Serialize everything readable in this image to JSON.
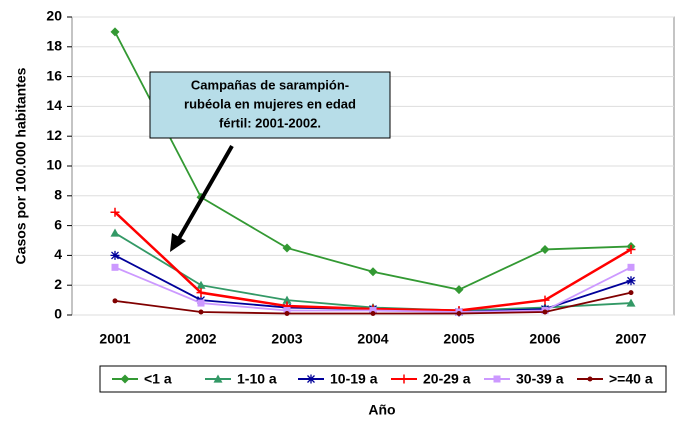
{
  "chart_data": {
    "type": "line",
    "x_label": "Año",
    "y_label": "Casos por 100.000 habitantes",
    "categories": [
      "2001",
      "2002",
      "2003",
      "2004",
      "2005",
      "2006",
      "2007"
    ],
    "series": [
      {
        "name": "<1 a",
        "color": "#339933",
        "marker": "diamond",
        "values": [
          19,
          7.9,
          4.5,
          2.9,
          1.7,
          4.4,
          4.6
        ]
      },
      {
        "name": "1-10 a",
        "color": "#339966",
        "marker": "triangle",
        "values": [
          5.5,
          2.0,
          1.0,
          0.5,
          0.3,
          0.5,
          0.8
        ]
      },
      {
        "name": "10-19 a",
        "color": "#000099",
        "marker": "asterisk",
        "values": [
          4.0,
          1.0,
          0.5,
          0.4,
          0.2,
          0.4,
          2.3
        ]
      },
      {
        "name": "20-29 a",
        "color": "#ff0000",
        "marker": "plus",
        "values": [
          6.9,
          1.5,
          0.6,
          0.4,
          0.3,
          1.0,
          4.4
        ]
      },
      {
        "name": "30-39 a",
        "color": "#cc99ff",
        "marker": "square",
        "values": [
          3.2,
          0.8,
          0.3,
          0.3,
          0.2,
          0.3,
          3.2
        ]
      },
      {
        "name": ">=40 a",
        "color": "#800000",
        "marker": "circle",
        "values": [
          0.95,
          0.2,
          0.1,
          0.1,
          0.1,
          0.2,
          1.5
        ]
      }
    ],
    "ylim": [
      0,
      20
    ],
    "yticks": [
      0,
      2,
      4,
      6,
      8,
      10,
      12,
      14,
      16,
      18,
      20
    ],
    "grid": true,
    "annotation": [
      "Campañas de sarampión-",
      "rubéola en mujeres en edad",
      "fértil: 2001-2002."
    ]
  }
}
